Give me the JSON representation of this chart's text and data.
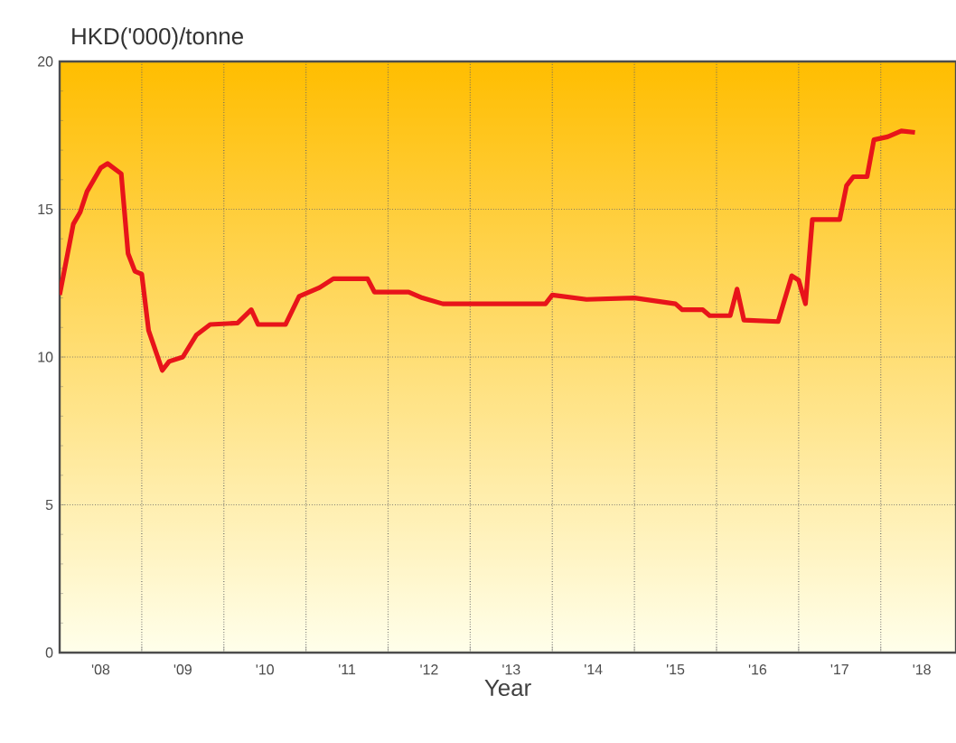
{
  "chart_data": {
    "type": "line",
    "ylabel": "HKD('000)/tonne",
    "xlabel": "Year",
    "x": [
      "2008-01",
      "2008-03",
      "2008-04",
      "2008-05",
      "2008-07",
      "2008-08",
      "2008-10",
      "2008-11",
      "2008-12",
      "2009-01",
      "2009-02",
      "2009-04",
      "2009-05",
      "2009-07",
      "2009-09",
      "2009-11",
      "2010-03",
      "2010-05",
      "2010-06",
      "2010-10",
      "2010-12",
      "2011-03",
      "2011-05",
      "2011-10",
      "2011-11",
      "2012-04",
      "2012-06",
      "2012-09",
      "2013-03",
      "2013-12",
      "2014-01",
      "2014-06",
      "2015-01",
      "2015-07",
      "2015-08",
      "2015-11",
      "2015-12",
      "2016-03",
      "2016-04",
      "2016-05",
      "2016-10",
      "2016-12",
      "2017-01",
      "2017-02",
      "2017-03",
      "2017-07",
      "2017-08",
      "2017-09",
      "2017-11",
      "2017-12",
      "2018-02",
      "2018-04",
      "2018-06"
    ],
    "series": [
      {
        "color": "#e8141a",
        "values": [
          12.1,
          14.5,
          14.9,
          15.6,
          16.4,
          16.55,
          16.2,
          13.5,
          12.9,
          12.8,
          10.9,
          9.55,
          9.85,
          10.0,
          10.75,
          11.1,
          11.15,
          11.6,
          11.1,
          11.1,
          12.05,
          12.35,
          12.65,
          12.65,
          12.2,
          12.2,
          12.0,
          11.8,
          11.8,
          11.8,
          12.1,
          11.95,
          12.0,
          11.8,
          11.6,
          11.6,
          11.4,
          11.4,
          12.3,
          11.25,
          11.2,
          12.75,
          12.6,
          11.8,
          14.65,
          14.65,
          15.8,
          16.1,
          16.1,
          17.35,
          17.45,
          17.65,
          17.6
        ]
      }
    ],
    "xlim": [
      "2008-01",
      "2018-12"
    ],
    "xticks": [
      {
        "value": "2008-07",
        "label": "'08"
      },
      {
        "value": "2009-07",
        "label": "'09"
      },
      {
        "value": "2010-07",
        "label": "'10"
      },
      {
        "value": "2011-07",
        "label": "'11"
      },
      {
        "value": "2012-07",
        "label": "'12"
      },
      {
        "value": "2013-07",
        "label": "'13"
      },
      {
        "value": "2014-07",
        "label": "'14"
      },
      {
        "value": "2015-07",
        "label": "'15"
      },
      {
        "value": "2016-07",
        "label": "'16"
      },
      {
        "value": "2017-07",
        "label": "'17"
      },
      {
        "value": "2018-07",
        "label": "'18"
      },
      {
        "value": "2009",
        "label": null
      },
      {
        "value": "2010",
        "label": null
      },
      {
        "value": "2011",
        "label": null
      },
      {
        "value": "2012",
        "label": null
      },
      {
        "value": "2013",
        "label": null
      },
      {
        "value": "2014",
        "label": null
      },
      {
        "value": "2015",
        "label": null
      },
      {
        "value": "2016",
        "label": null
      },
      {
        "value": "2017",
        "label": null
      },
      {
        "value": "2018",
        "label": null
      }
    ],
    "ylim": [
      0,
      20
    ],
    "yticks": [
      0,
      5,
      10,
      15,
      20
    ],
    "grid": true,
    "marker": "none",
    "line_style": "solid"
  }
}
